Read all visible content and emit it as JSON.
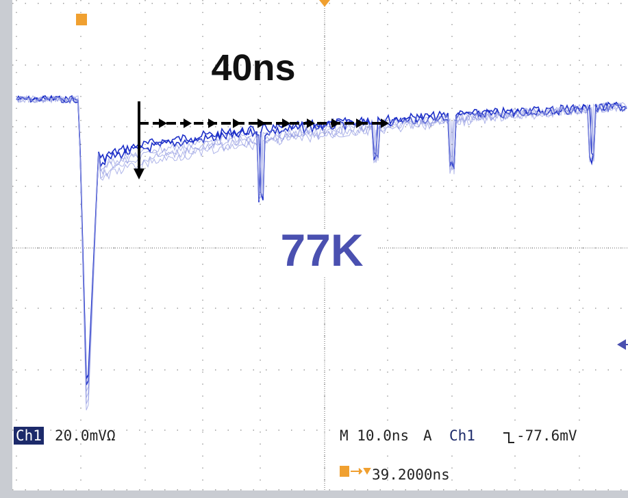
{
  "annotation": {
    "interval": "40ns",
    "temperature": "77K"
  },
  "status": {
    "channel": "Ch1",
    "scale": "20.0mVΩ",
    "timebase": "M 10.0ns",
    "trigger_mode": "A",
    "trigger_source": "Ch1",
    "trigger_level": "-77.6mV",
    "trigger_position": "39.2000ns"
  }
}
